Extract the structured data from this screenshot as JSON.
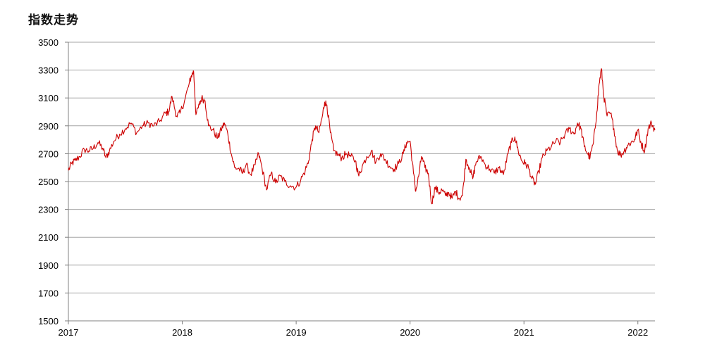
{
  "chart_data": {
    "type": "line",
    "title": "指数走势",
    "xlabel": "",
    "ylabel": "",
    "x_ticks": [
      "2017",
      "2018",
      "2019",
      "2020",
      "2021",
      "2022"
    ],
    "xlim": [
      2017.0,
      2022.15
    ],
    "y_ticks": [
      1500,
      1700,
      1900,
      2100,
      2300,
      2500,
      2700,
      2900,
      3100,
      3300,
      3500
    ],
    "ylim": [
      1500,
      3500
    ],
    "grid": true,
    "colors": {
      "line": "#cc0000",
      "grid": "#a6a6a6",
      "axis": "#808080"
    },
    "series": [
      {
        "values": [
          [
            2017.0,
            2580
          ],
          [
            2017.03,
            2630
          ],
          [
            2017.06,
            2650
          ],
          [
            2017.1,
            2680
          ],
          [
            2017.14,
            2730
          ],
          [
            2017.18,
            2720
          ],
          [
            2017.22,
            2740
          ],
          [
            2017.26,
            2780
          ],
          [
            2017.3,
            2740
          ],
          [
            2017.33,
            2670
          ],
          [
            2017.36,
            2720
          ],
          [
            2017.4,
            2790
          ],
          [
            2017.45,
            2840
          ],
          [
            2017.5,
            2880
          ],
          [
            2017.55,
            2920
          ],
          [
            2017.6,
            2850
          ],
          [
            2017.65,
            2900
          ],
          [
            2017.7,
            2920
          ],
          [
            2017.75,
            2900
          ],
          [
            2017.8,
            2930
          ],
          [
            2017.85,
            2990
          ],
          [
            2017.88,
            3000
          ],
          [
            2017.91,
            3110
          ],
          [
            2017.95,
            2970
          ],
          [
            2017.98,
            2990
          ],
          [
            2018.02,
            3080
          ],
          [
            2018.06,
            3200
          ],
          [
            2018.08,
            3260
          ],
          [
            2018.1,
            3290
          ],
          [
            2018.12,
            2980
          ],
          [
            2018.15,
            3050
          ],
          [
            2018.17,
            3100
          ],
          [
            2018.2,
            3080
          ],
          [
            2018.23,
            2900
          ],
          [
            2018.27,
            2870
          ],
          [
            2018.31,
            2810
          ],
          [
            2018.34,
            2870
          ],
          [
            2018.37,
            2920
          ],
          [
            2018.4,
            2840
          ],
          [
            2018.43,
            2700
          ],
          [
            2018.46,
            2600
          ],
          [
            2018.5,
            2590
          ],
          [
            2018.53,
            2560
          ],
          [
            2018.56,
            2620
          ],
          [
            2018.6,
            2550
          ],
          [
            2018.64,
            2620
          ],
          [
            2018.67,
            2700
          ],
          [
            2018.7,
            2600
          ],
          [
            2018.74,
            2440
          ],
          [
            2018.78,
            2560
          ],
          [
            2018.82,
            2490
          ],
          [
            2018.86,
            2540
          ],
          [
            2018.9,
            2500
          ],
          [
            2018.95,
            2470
          ],
          [
            2019.0,
            2460
          ],
          [
            2019.04,
            2510
          ],
          [
            2019.08,
            2580
          ],
          [
            2019.11,
            2650
          ],
          [
            2019.14,
            2800
          ],
          [
            2019.17,
            2900
          ],
          [
            2019.2,
            2850
          ],
          [
            2019.23,
            2970
          ],
          [
            2019.25,
            3070
          ],
          [
            2019.27,
            3050
          ],
          [
            2019.3,
            2850
          ],
          [
            2019.33,
            2720
          ],
          [
            2019.37,
            2690
          ],
          [
            2019.4,
            2670
          ],
          [
            2019.44,
            2700
          ],
          [
            2019.48,
            2680
          ],
          [
            2019.52,
            2650
          ],
          [
            2019.55,
            2540
          ],
          [
            2019.58,
            2610
          ],
          [
            2019.62,
            2680
          ],
          [
            2019.66,
            2720
          ],
          [
            2019.7,
            2640
          ],
          [
            2019.74,
            2700
          ],
          [
            2019.78,
            2660
          ],
          [
            2019.82,
            2610
          ],
          [
            2019.86,
            2590
          ],
          [
            2019.9,
            2630
          ],
          [
            2019.94,
            2700
          ],
          [
            2019.97,
            2780
          ],
          [
            2020.0,
            2790
          ],
          [
            2020.03,
            2560
          ],
          [
            2020.05,
            2430
          ],
          [
            2020.08,
            2560
          ],
          [
            2020.1,
            2680
          ],
          [
            2020.13,
            2600
          ],
          [
            2020.16,
            2560
          ],
          [
            2020.19,
            2340
          ],
          [
            2020.22,
            2460
          ],
          [
            2020.25,
            2420
          ],
          [
            2020.28,
            2440
          ],
          [
            2020.31,
            2400
          ],
          [
            2020.34,
            2420
          ],
          [
            2020.37,
            2380
          ],
          [
            2020.4,
            2430
          ],
          [
            2020.43,
            2380
          ],
          [
            2020.46,
            2400
          ],
          [
            2020.49,
            2660
          ],
          [
            2020.52,
            2600
          ],
          [
            2020.55,
            2520
          ],
          [
            2020.58,
            2640
          ],
          [
            2020.62,
            2680
          ],
          [
            2020.66,
            2620
          ],
          [
            2020.7,
            2590
          ],
          [
            2020.74,
            2560
          ],
          [
            2020.78,
            2600
          ],
          [
            2020.82,
            2550
          ],
          [
            2020.86,
            2700
          ],
          [
            2020.89,
            2780
          ],
          [
            2020.92,
            2820
          ],
          [
            2020.95,
            2720
          ],
          [
            2020.98,
            2650
          ],
          [
            2021.01,
            2630
          ],
          [
            2021.04,
            2600
          ],
          [
            2021.07,
            2520
          ],
          [
            2021.1,
            2480
          ],
          [
            2021.13,
            2570
          ],
          [
            2021.16,
            2670
          ],
          [
            2021.2,
            2720
          ],
          [
            2021.24,
            2750
          ],
          [
            2021.28,
            2790
          ],
          [
            2021.32,
            2780
          ],
          [
            2021.36,
            2840
          ],
          [
            2021.4,
            2880
          ],
          [
            2021.44,
            2840
          ],
          [
            2021.47,
            2920
          ],
          [
            2021.5,
            2880
          ],
          [
            2021.53,
            2750
          ],
          [
            2021.56,
            2700
          ],
          [
            2021.58,
            2670
          ],
          [
            2021.61,
            2780
          ],
          [
            2021.64,
            3000
          ],
          [
            2021.66,
            3200
          ],
          [
            2021.68,
            3310
          ],
          [
            2021.7,
            3120
          ],
          [
            2021.73,
            2970
          ],
          [
            2021.76,
            2990
          ],
          [
            2021.79,
            2880
          ],
          [
            2021.82,
            2720
          ],
          [
            2021.85,
            2690
          ],
          [
            2021.88,
            2720
          ],
          [
            2021.91,
            2760
          ],
          [
            2021.94,
            2780
          ],
          [
            2021.97,
            2800
          ],
          [
            2022.0,
            2870
          ],
          [
            2022.03,
            2770
          ],
          [
            2022.06,
            2720
          ],
          [
            2022.09,
            2880
          ],
          [
            2022.12,
            2920
          ],
          [
            2022.15,
            2870
          ]
        ]
      }
    ]
  }
}
